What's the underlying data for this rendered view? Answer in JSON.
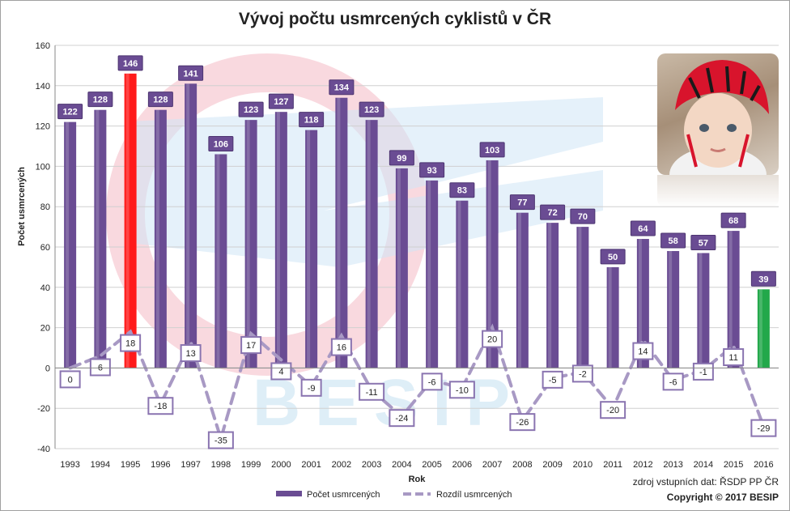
{
  "header": {
    "title": "Vývoj počtu usmrcených cyklistů v ČR"
  },
  "footer": {
    "source": "zdroj vstupních dat: ŘSDP PP ČR",
    "copyright": "Copyright © 2017  BESIP"
  },
  "watermark": {
    "text": "BESIP"
  },
  "colors": {
    "bar": "#6a4c93",
    "bar_highlight_max": "#ff1a1a",
    "bar_highlight_last": "#22a84a",
    "diff_line": "#a899c4",
    "label_bg": "#6a4c93",
    "diff_box_border": "#8a74b0"
  },
  "chart_data": {
    "type": "bar",
    "title": "Vývoj počtu usmrcených cyklistů v ČR",
    "xlabel": "Rok",
    "ylabel": "Počet usmrcených",
    "ylim": [
      -40,
      160
    ],
    "yticks": [
      -40,
      -20,
      0,
      20,
      40,
      60,
      80,
      100,
      120,
      140,
      160
    ],
    "grid": true,
    "legend_position": "bottom",
    "categories": [
      "1993",
      "1994",
      "1995",
      "1996",
      "1997",
      "1998",
      "1999",
      "2000",
      "2001",
      "2002",
      "2003",
      "2004",
      "2005",
      "2006",
      "2007",
      "2008",
      "2009",
      "2010",
      "2011",
      "2012",
      "2013",
      "2014",
      "2015",
      "2016"
    ],
    "series": [
      {
        "name": "Počet usmrcených",
        "type": "bar",
        "values": [
          122,
          128,
          146,
          128,
          141,
          106,
          123,
          127,
          118,
          134,
          123,
          99,
          93,
          83,
          103,
          77,
          72,
          70,
          50,
          64,
          58,
          57,
          68,
          39
        ]
      },
      {
        "name": "Rozdíl usmrcených",
        "type": "line",
        "values": [
          0,
          6,
          18,
          -18,
          13,
          -35,
          17,
          4,
          -9,
          16,
          -11,
          -24,
          -6,
          -10,
          20,
          -26,
          -5,
          -2,
          -20,
          14,
          -6,
          -1,
          11,
          -29
        ]
      }
    ]
  }
}
